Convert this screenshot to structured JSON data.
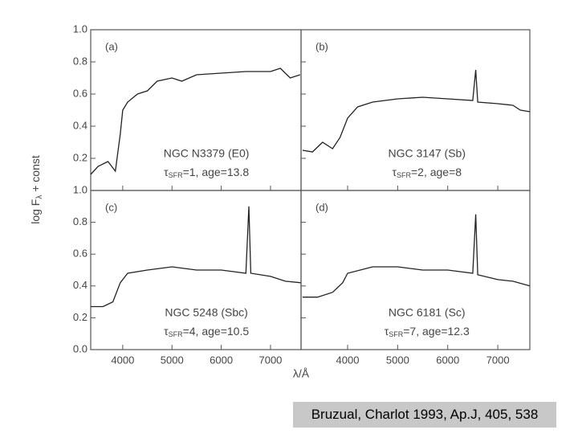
{
  "figure": {
    "y_label": {
      "main": "log F",
      "sub": "λ",
      "rest": " + const"
    },
    "x_label": "λ/Å",
    "caption": "Bruzual, Charlot 1993, Ap.J, 405, 538"
  },
  "chart_data": [
    {
      "type": "line",
      "panel": "(a)",
      "name": "NGC N3379 (E0)",
      "param_symbol": "τ",
      "param_sub": "SFR",
      "param_text": "=1, age=13.8",
      "x": [
        3350,
        3500,
        3700,
        3850,
        3950,
        4000,
        4100,
        4300,
        4500,
        4700,
        5000,
        5200,
        5500,
        6000,
        6500,
        7000,
        7200,
        7400,
        7600
      ],
      "values": [
        0.1,
        0.15,
        0.18,
        0.12,
        0.35,
        0.5,
        0.55,
        0.6,
        0.62,
        0.68,
        0.7,
        0.68,
        0.72,
        0.73,
        0.74,
        0.74,
        0.76,
        0.7,
        0.72
      ],
      "color": "#222222",
      "xlim": [
        3350,
        7620
      ],
      "ylim": [
        0,
        1
      ],
      "xticks": [
        4000,
        5000,
        6000,
        7000
      ],
      "yticks": [
        0.2,
        0.4,
        0.6,
        0.8,
        {
          "value": 1,
          "label": "1.0"
        }
      ]
    },
    {
      "type": "line",
      "panel": "(b)",
      "name": "NGC 3147 (Sb)",
      "param_symbol": "τ",
      "param_sub": "SFR",
      "param_text": "=2, age=8",
      "x": [
        3100,
        3300,
        3500,
        3700,
        3850,
        4000,
        4200,
        4500,
        5000,
        5500,
        6000,
        6500,
        6560,
        6600,
        7000,
        7300,
        7450,
        7640
      ],
      "values": [
        0.25,
        0.24,
        0.3,
        0.26,
        0.33,
        0.45,
        0.52,
        0.55,
        0.57,
        0.58,
        0.57,
        0.56,
        0.75,
        0.55,
        0.54,
        0.53,
        0.5,
        0.49
      ],
      "color": "#222222",
      "xlim": [
        3070,
        7640
      ],
      "ylim": [
        0,
        1
      ],
      "xticks": [
        4000,
        5000,
        6000,
        7000
      ],
      "yticks": [
        0.2,
        0.4,
        0.6,
        0.8,
        1
      ]
    },
    {
      "type": "line",
      "panel": "(c)",
      "name": "NGC 5248 (Sbc)",
      "param_symbol": "τ",
      "param_sub": "SFR",
      "param_text": "=4, age=10.5",
      "x": [
        3350,
        3600,
        3800,
        3950,
        4100,
        4500,
        5000,
        5500,
        6000,
        6500,
        6560,
        6600,
        7000,
        7300,
        7620
      ],
      "values": [
        0.27,
        0.27,
        0.3,
        0.42,
        0.48,
        0.5,
        0.52,
        0.5,
        0.5,
        0.48,
        0.9,
        0.48,
        0.46,
        0.43,
        0.42
      ],
      "color": "#222222",
      "xlim": [
        3350,
        7620
      ],
      "ylim": [
        0,
        1
      ],
      "xticks": [
        4000,
        5000,
        6000,
        7000
      ],
      "yticks": [
        {
          "value": 0,
          "label": "0.0"
        },
        0.2,
        0.4,
        0.6,
        0.8,
        {
          "value": 1,
          "label": "1.0"
        }
      ]
    },
    {
      "type": "line",
      "panel": "(d)",
      "name": "NGC 6181 (Sc)",
      "param_symbol": "τ",
      "param_sub": "SFR",
      "param_text": "=7, age=12.3",
      "x": [
        3100,
        3400,
        3700,
        3900,
        4000,
        4500,
        5000,
        5500,
        6000,
        6500,
        6560,
        6600,
        7000,
        7300,
        7640
      ],
      "values": [
        0.33,
        0.33,
        0.36,
        0.42,
        0.48,
        0.52,
        0.52,
        0.5,
        0.5,
        0.48,
        0.85,
        0.47,
        0.44,
        0.43,
        0.4
      ],
      "color": "#222222",
      "xlim": [
        3070,
        7640
      ],
      "ylim": [
        0,
        1
      ],
      "xticks": [
        4000,
        5000,
        6000,
        7000
      ],
      "yticks": [
        0,
        0.2,
        0.4,
        0.6,
        0.8,
        1
      ]
    }
  ]
}
